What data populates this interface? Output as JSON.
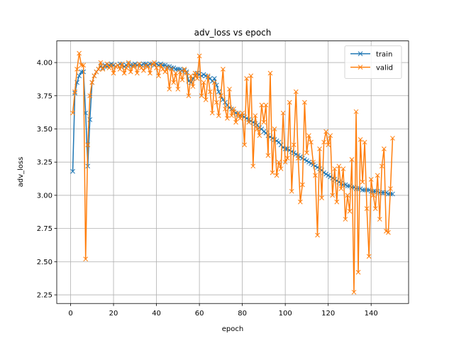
{
  "chart_data": {
    "type": "line",
    "title": "adv_loss vs epoch",
    "xlabel": "epoch",
    "ylabel": "adv_loss",
    "x": [
      1,
      2,
      3,
      4,
      5,
      6,
      7,
      8,
      9,
      10,
      11,
      12,
      13,
      14,
      15,
      16,
      17,
      18,
      19,
      20,
      21,
      22,
      23,
      24,
      25,
      26,
      27,
      28,
      29,
      30,
      31,
      32,
      33,
      34,
      35,
      36,
      37,
      38,
      39,
      40,
      41,
      42,
      43,
      44,
      45,
      46,
      47,
      48,
      49,
      50,
      51,
      52,
      53,
      54,
      55,
      56,
      57,
      58,
      59,
      60,
      61,
      62,
      63,
      64,
      65,
      66,
      67,
      68,
      69,
      70,
      71,
      72,
      73,
      74,
      75,
      76,
      77,
      78,
      79,
      80,
      81,
      82,
      83,
      84,
      85,
      86,
      87,
      88,
      89,
      90,
      91,
      92,
      93,
      94,
      95,
      96,
      97,
      98,
      99,
      100,
      101,
      102,
      103,
      104,
      105,
      106,
      107,
      108,
      109,
      110,
      111,
      112,
      113,
      114,
      115,
      116,
      117,
      118,
      119,
      120,
      121,
      122,
      123,
      124,
      125,
      126,
      127,
      128,
      129,
      130,
      131,
      132,
      133,
      134,
      135,
      136,
      137,
      138,
      139,
      140,
      141,
      142,
      143,
      144,
      145,
      146,
      147,
      148,
      149,
      150
    ],
    "series": [
      {
        "name": "train",
        "color": "#1f77b4",
        "values": [
          3.18,
          3.77,
          3.85,
          3.9,
          3.93,
          3.93,
          3.62,
          3.22,
          3.57,
          3.85,
          3.9,
          3.93,
          3.95,
          3.97,
          3.96,
          3.98,
          3.97,
          3.98,
          3.99,
          3.98,
          3.97,
          3.98,
          3.99,
          3.98,
          3.97,
          3.98,
          3.99,
          3.98,
          3.98,
          3.99,
          3.98,
          3.99,
          3.98,
          3.99,
          3.99,
          3.98,
          3.99,
          3.99,
          3.98,
          3.99,
          3.98,
          3.99,
          3.98,
          3.98,
          3.97,
          3.97,
          3.96,
          3.96,
          3.95,
          3.95,
          3.95,
          3.94,
          3.94,
          3.93,
          3.86,
          3.85,
          3.88,
          3.9,
          3.92,
          3.91,
          3.9,
          3.91,
          3.9,
          3.89,
          3.88,
          3.86,
          3.88,
          3.83,
          3.78,
          3.75,
          3.72,
          3.7,
          3.68,
          3.66,
          3.65,
          3.63,
          3.62,
          3.61,
          3.6,
          3.6,
          3.59,
          3.58,
          3.57,
          3.56,
          3.55,
          3.54,
          3.53,
          3.51,
          3.5,
          3.48,
          3.47,
          3.45,
          3.44,
          3.43,
          3.42,
          3.41,
          3.4,
          3.38,
          3.36,
          3.35,
          3.35,
          3.34,
          3.33,
          3.32,
          3.31,
          3.3,
          3.29,
          3.28,
          3.27,
          3.26,
          3.25,
          3.24,
          3.23,
          3.22,
          3.21,
          3.2,
          3.19,
          3.17,
          3.16,
          3.15,
          3.14,
          3.13,
          3.12,
          3.11,
          3.1,
          3.09,
          3.08,
          3.08,
          3.07,
          3.07,
          3.06,
          3.06,
          3.05,
          3.05,
          3.05,
          3.04,
          3.04,
          3.04,
          3.04,
          3.03,
          3.03,
          3.03,
          3.03,
          3.02,
          3.02,
          3.02,
          3.02,
          3.01,
          3.01,
          3.01
        ]
      },
      {
        "name": "valid",
        "color": "#ff7f0e",
        "values": [
          3.62,
          3.78,
          3.95,
          4.07,
          3.98,
          3.98,
          2.52,
          3.38,
          3.75,
          3.85,
          3.9,
          3.93,
          3.95,
          4.0,
          3.95,
          3.97,
          3.99,
          3.96,
          3.98,
          3.92,
          3.97,
          3.98,
          3.95,
          3.99,
          3.92,
          3.96,
          4.0,
          3.93,
          3.97,
          3.98,
          3.92,
          3.99,
          3.96,
          3.94,
          3.98,
          3.97,
          3.92,
          3.99,
          4.0,
          3.96,
          3.9,
          3.98,
          3.95,
          3.93,
          3.96,
          3.8,
          3.95,
          3.85,
          3.92,
          3.8,
          3.93,
          3.87,
          3.95,
          3.92,
          3.75,
          3.9,
          3.82,
          3.92,
          3.88,
          4.05,
          3.75,
          3.85,
          3.72,
          3.9,
          3.78,
          3.62,
          3.85,
          3.7,
          3.6,
          3.75,
          3.95,
          3.65,
          3.58,
          3.8,
          3.6,
          3.65,
          3.55,
          3.62,
          3.58,
          3.62,
          3.38,
          3.88,
          3.55,
          3.9,
          3.22,
          3.6,
          3.5,
          3.45,
          3.68,
          3.55,
          3.68,
          3.3,
          3.92,
          3.17,
          3.5,
          3.15,
          3.25,
          3.2,
          3.62,
          3.25,
          3.28,
          3.7,
          3.03,
          3.38,
          3.78,
          3.28,
          2.95,
          3.08,
          3.7,
          3.32,
          3.45,
          3.4,
          3.25,
          3.15,
          2.7,
          3.35,
          2.98,
          3.4,
          3.48,
          3.38,
          3.45,
          3.0,
          3.2,
          2.95,
          3.22,
          3.05,
          3.2,
          2.82,
          3.0,
          2.88,
          3.27,
          2.27,
          3.63,
          2.42,
          3.42,
          3.1,
          3.4,
          2.9,
          2.54,
          3.12,
          3.0,
          2.9,
          3.15,
          2.82,
          3.22,
          3.35,
          2.73,
          2.72,
          3.05,
          3.43
        ]
      }
    ],
    "xlim": [
      -6.45,
      157.45
    ],
    "xticks": [
      0,
      20,
      40,
      60,
      80,
      100,
      120,
      140
    ],
    "ylim": [
      2.185,
      4.163
    ],
    "yticks": [
      2.25,
      {
        "value": 2.5,
        "label": "2.50"
      },
      2.75,
      {
        "value": 3,
        "label": "3.00"
      },
      3.25,
      {
        "value": 3.5,
        "label": "3.50"
      },
      3.75,
      {
        "value": 4,
        "label": "4.00"
      }
    ],
    "grid": true,
    "legend": "upper right"
  }
}
